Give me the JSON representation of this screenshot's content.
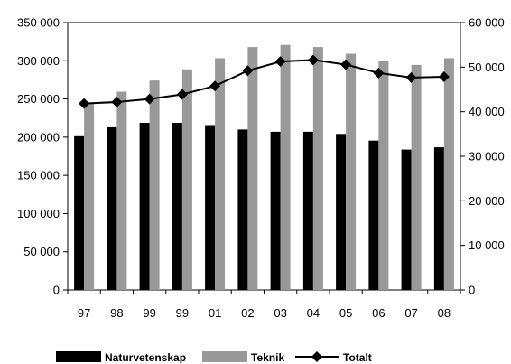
{
  "chart_data": {
    "type": "bar",
    "categories": [
      "97",
      "98",
      "99",
      "99",
      "01",
      "02",
      "03",
      "04",
      "05",
      "06",
      "07",
      "08"
    ],
    "series": [
      {
        "name": "Naturvetenskap",
        "type": "bar",
        "axis": "right",
        "color": "#000000",
        "values": [
          34500,
          36500,
          37500,
          37500,
          37000,
          36000,
          35500,
          35500,
          35000,
          33500,
          31500,
          32000
        ]
      },
      {
        "name": "Teknik",
        "type": "bar",
        "axis": "right",
        "color": "#999999",
        "values": [
          42000,
          44500,
          47000,
          49500,
          52000,
          54500,
          55000,
          54500,
          53000,
          51500,
          50500,
          52000
        ]
      },
      {
        "name": "Totalt",
        "type": "line",
        "axis": "left",
        "color": "#000000",
        "marker": "diamond",
        "values": [
          244000,
          246000,
          250000,
          256000,
          267000,
          287000,
          299000,
          301000,
          295000,
          284000,
          278000,
          279000
        ]
      }
    ],
    "y_left": {
      "min": 0,
      "max": 350000,
      "ticks": [
        0,
        50000,
        100000,
        150000,
        200000,
        250000,
        300000,
        350000
      ],
      "tick_labels": [
        "0",
        "50 000",
        "100 000",
        "150 000",
        "200 000",
        "250 000",
        "300 000",
        "350 000"
      ]
    },
    "y_right": {
      "min": 0,
      "max": 60000,
      "ticks": [
        0,
        10000,
        20000,
        30000,
        40000,
        50000,
        60000
      ],
      "tick_labels": [
        "0",
        "10 000",
        "20 000",
        "30 000",
        "40 000",
        "50 000",
        "60 000"
      ]
    },
    "title": "",
    "xlabel": "",
    "ylabel": "",
    "grid": false,
    "legend": {
      "position": "bottom",
      "entries": [
        "Naturvetenskap",
        "Teknik",
        "Totalt"
      ]
    }
  }
}
